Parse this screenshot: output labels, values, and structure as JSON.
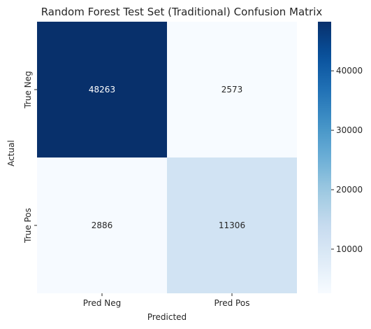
{
  "chart_data": {
    "type": "heatmap",
    "title": "Random Forest Test Set (Traditional) Confusion Matrix",
    "xlabel": "Predicted",
    "ylabel": "Actual",
    "x_categories": [
      "Pred Neg",
      "Pred Pos"
    ],
    "y_categories": [
      "True Neg",
      "True Pos"
    ],
    "values": [
      [
        48263,
        2573
      ],
      [
        2886,
        11306
      ]
    ],
    "colormap": "Blues",
    "colorbar": {
      "min": 2573,
      "max": 48263,
      "ticks": [
        10000,
        20000,
        30000,
        40000
      ]
    },
    "colors": {
      "low": "#f7fbff",
      "high": "#08306b",
      "text_dark_bg": "#ffffff",
      "text_light_bg": "#262626"
    }
  }
}
